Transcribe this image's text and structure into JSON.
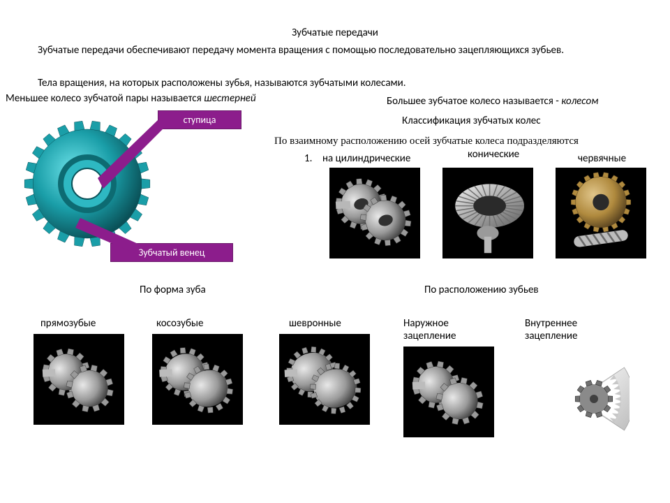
{
  "title": "Зубчатые передачи",
  "para1": "Зубчатые передачи обеспечивают передачу момента вращения с помощью последовательно зацепляющихся зубьев.",
  "para2": "Тела вращения, на которых расположены зубья, называются зубчатыми колесами.",
  "smallGear_prefix": "Меньшее колесо зубчатой пары называется ",
  "smallGear_em": "шестерней",
  "largeGear_prefix": "Большее зубчатое колесо называется - ",
  "largeGear_em": "колесом",
  "classification": "Классификация зубчатых колес",
  "axesTitle": "По взаимному расположению осей зубчатые колеса подразделяются",
  "callouts": {
    "hub": "ступица",
    "ring": "Зубчатый венец"
  },
  "axisList": {
    "num": "1.",
    "cylindrical": "на цилиндрические",
    "conical": "конические",
    "worm": "червячные"
  },
  "toothFormTitle": "По форма зуба",
  "toothPosTitle": "По расположению зубьев",
  "row2": {
    "spur": "прямозубые",
    "helical": "косозубые",
    "herring": "шевронные",
    "external": "Наружное зацепление",
    "internal": "Внутреннее зацепление"
  },
  "colors": {
    "callout_bg": "#8c1d8c",
    "callout_border": "#6b1a6b",
    "tile_bg": "#000000",
    "gear_light": "#bfbfbf",
    "gear_mid": "#8a8a8a",
    "gear_dark": "#5a5a5a",
    "cyan_gear_light": "#4fd0d8",
    "cyan_gear_mid": "#1a9ea8",
    "cyan_gear_dark": "#0d6b72",
    "brass": "#b08a3e",
    "brass_dark": "#6e5626"
  }
}
